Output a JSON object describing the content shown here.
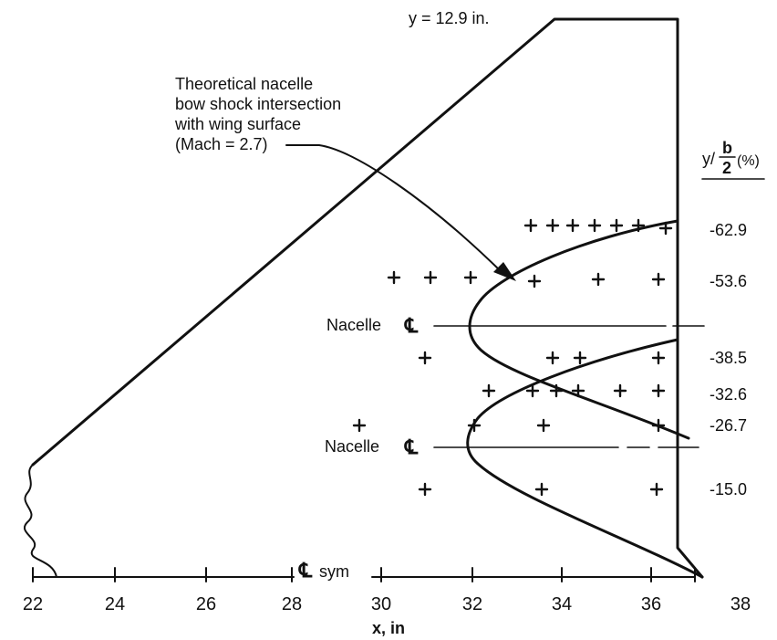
{
  "title": {
    "y_label": "y = 12.9 in."
  },
  "annotation": {
    "lines": [
      "Theoretical nacelle",
      "bow shock intersection",
      "with wing surface",
      "(Mach = 2.7)"
    ]
  },
  "nacelle_labels": [
    "Nacelle",
    "Nacelle"
  ],
  "centerline_symbol": "℄",
  "sym_label": "sym",
  "right_column": {
    "header_prefix": "y/",
    "header_num": "b",
    "header_den": "2",
    "header_suffix": "(%)",
    "values": [
      "-62.9",
      "-53.6",
      "-38.5",
      "-32.6",
      "-26.7",
      "-15.0"
    ]
  },
  "x_axis": {
    "title": "x, in",
    "tick_labels": [
      "22",
      "24",
      "26",
      "28",
      "30",
      "32",
      "34",
      "36",
      "38"
    ]
  },
  "colors": {
    "ink": "#111111",
    "background": "#ffffff"
  }
}
